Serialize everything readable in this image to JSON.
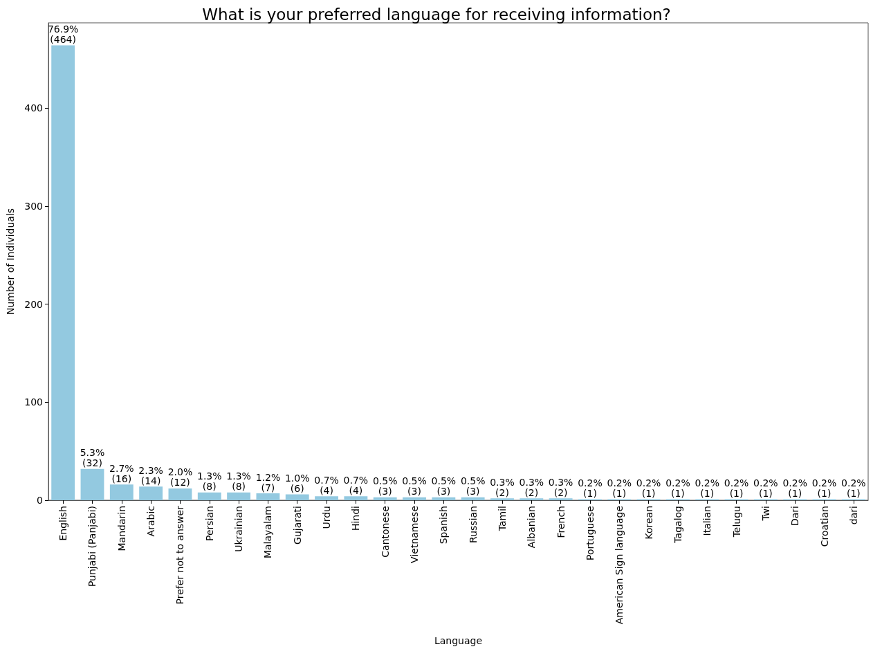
{
  "chart_data": {
    "type": "bar",
    "title": "What is your preferred language for receiving information?",
    "xlabel": "Language",
    "ylabel": "Number of Individuals",
    "categories": [
      "English",
      "Punjabi (Panjabi)",
      "Mandarin",
      "Arabic",
      "Prefer not to answer",
      "Persian",
      "Ukrainian",
      "Malayalam",
      "Gujarati",
      "Urdu",
      "Hindi",
      "Cantonese",
      "Vietnamese",
      "Spanish",
      "Russian",
      "Tamil",
      "Albanian",
      "French",
      "Portuguese",
      "American Sign language",
      "Korean",
      "Tagalog",
      "Italian",
      "Telugu",
      "Twi",
      "Dari",
      "Croatian",
      "dari"
    ],
    "values": [
      464,
      32,
      16,
      14,
      12,
      8,
      8,
      7,
      6,
      4,
      4,
      3,
      3,
      3,
      3,
      2,
      2,
      2,
      1,
      1,
      1,
      1,
      1,
      1,
      1,
      1,
      1,
      1
    ],
    "value_labels": [
      "76.9%\n(464)",
      "5.3%\n(32)",
      "2.7%\n(16)",
      "2.3%\n(14)",
      "2.0%\n(12)",
      "1.3%\n(8)",
      "1.3%\n(8)",
      "1.2%\n(7)",
      "1.0%\n(6)",
      "0.7%\n(4)",
      "0.7%\n(4)",
      "0.5%\n(3)",
      "0.5%\n(3)",
      "0.5%\n(3)",
      "0.5%\n(3)",
      "0.3%\n(2)",
      "0.3%\n(2)",
      "0.3%\n(2)",
      "0.2%\n(1)",
      "0.2%\n(1)",
      "0.2%\n(1)",
      "0.2%\n(1)",
      "0.2%\n(1)",
      "0.2%\n(1)",
      "0.2%\n(1)",
      "0.2%\n(1)",
      "0.2%\n(1)",
      "0.2%\n(1)"
    ],
    "color": "#93c9e0",
    "ylim": [
      0,
      487
    ],
    "yticks": [
      0,
      100,
      200,
      300,
      400
    ],
    "grid": false
  }
}
